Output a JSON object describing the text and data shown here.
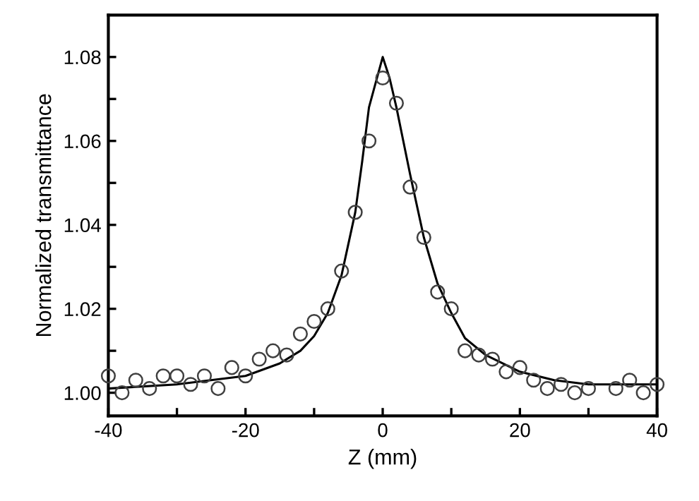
{
  "chart_data": {
    "type": "scatter",
    "xlabel": "Z (mm)",
    "ylabel": "Normalized transmittance",
    "xlim": [
      -40,
      40
    ],
    "ylim": [
      0.9945,
      1.09
    ],
    "xticks": [
      -40,
      {
        "value": -30,
        "label": null
      },
      -20,
      {
        "value": -10,
        "label": null
      },
      0,
      {
        "value": 10,
        "label": null
      },
      20,
      {
        "value": 30,
        "label": null
      },
      40
    ],
    "yticks": [
      {
        "value": 1.0,
        "label": "1.00"
      },
      {
        "value": 1.01,
        "label": null
      },
      {
        "value": 1.02,
        "label": "1.02"
      },
      {
        "value": 1.03,
        "label": null
      },
      {
        "value": 1.04,
        "label": "1.04"
      },
      {
        "value": 1.05,
        "label": null
      },
      {
        "value": 1.06,
        "label": "1.06"
      },
      {
        "value": 1.07,
        "label": null
      },
      {
        "value": 1.08,
        "label": "1.08"
      }
    ],
    "grid": false,
    "legend": false,
    "series": [
      {
        "marker": "circle",
        "color": "#404040",
        "x": [
          -40,
          -38,
          -36,
          -34,
          -32,
          -30,
          -28,
          -26,
          -24,
          -22,
          -20,
          -18,
          -16,
          -14,
          -12,
          -10,
          -8,
          -6,
          -4,
          -2,
          0,
          2,
          4,
          6,
          8,
          10,
          12,
          14,
          16,
          18,
          20,
          22,
          24,
          26,
          28,
          30,
          34,
          36,
          38,
          40
        ],
        "values": [
          1.004,
          1.0,
          1.003,
          1.001,
          1.004,
          1.004,
          1.002,
          1.004,
          1.001,
          1.006,
          1.004,
          1.008,
          1.01,
          1.009,
          1.014,
          1.017,
          1.02,
          1.029,
          1.043,
          1.06,
          1.075,
          1.069,
          1.049,
          1.037,
          1.024,
          1.02,
          1.01,
          1.009,
          1.008,
          1.005,
          1.006,
          1.003,
          1.001,
          1.002,
          1.0,
          1.001,
          1.001,
          1.003,
          1.0,
          1.002
        ]
      },
      {
        "type": "line",
        "marker": "none",
        "line_style": "solid",
        "color": "#000000",
        "x": [
          -40,
          -30,
          -20,
          -15,
          -12,
          -10,
          -8,
          -6,
          -4,
          -3,
          -2,
          -1,
          0,
          1,
          2,
          3,
          4,
          6,
          8,
          10,
          12,
          15,
          20,
          25,
          30,
          40
        ],
        "values": [
          1.001,
          1.002,
          1.004,
          1.007,
          1.01,
          1.0135,
          1.019,
          1.028,
          1.043,
          1.055,
          1.068,
          1.074,
          1.08,
          1.075,
          1.068,
          1.06,
          1.052,
          1.037,
          1.026,
          1.019,
          1.013,
          1.009,
          1.005,
          1.003,
          1.002,
          1.002
        ]
      }
    ]
  }
}
